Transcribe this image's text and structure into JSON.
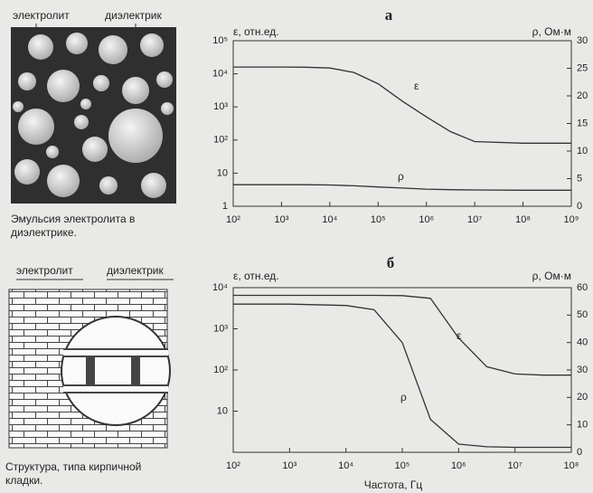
{
  "figure_top": {
    "labels": [
      "электролит",
      "диэлектрик"
    ],
    "caption": [
      "Эмульсия электролита в",
      "диэлектрике."
    ]
  },
  "figure_bottom": {
    "labels": [
      "электролит",
      "диэлектрик"
    ],
    "caption": [
      "Структура, типа кирпичной",
      "кладки."
    ]
  },
  "chart_data": [
    {
      "type": "line",
      "title": "а",
      "ylabel": "ε, отн.ед.",
      "y2label": "ρ, Ом·м",
      "x": [
        100,
        1000,
        3162,
        10000,
        31623,
        100000,
        316228,
        1000000,
        3162278,
        10000000,
        100000000,
        1000000000
      ],
      "xlog": true,
      "ylog": true,
      "xlim": [
        100,
        1000000000
      ],
      "xticks": [
        {
          "value": 100,
          "label": "10²"
        },
        {
          "value": 1000,
          "label": "10³"
        },
        {
          "value": 10000,
          "label": "10⁴"
        },
        {
          "value": 100000,
          "label": "10⁵"
        },
        {
          "value": 1000000,
          "label": "10⁶"
        },
        {
          "value": 10000000,
          "label": "10⁷"
        },
        {
          "value": 100000000,
          "label": "10⁸"
        },
        {
          "value": 1000000000,
          "label": "10⁹"
        }
      ],
      "ylim": [
        1,
        100000
      ],
      "yticks": [
        1,
        10,
        {
          "value": 100,
          "label": "10²"
        },
        {
          "value": 1000,
          "label": "10³"
        },
        {
          "value": 10000,
          "label": "10⁴"
        },
        {
          "value": 100000,
          "label": "10⁵"
        }
      ],
      "y2lim": [
        0,
        30
      ],
      "y2ticks": [
        0,
        5,
        10,
        15,
        20,
        25,
        30
      ],
      "series": [
        {
          "name": "ε",
          "color": "#333333",
          "values": [
            16000,
            16000,
            15800,
            15000,
            11000,
            5000,
            1500,
            500,
            180,
            90,
            80,
            80
          ]
        },
        {
          "name": "ρ",
          "color": "#333333",
          "axis": "y2",
          "values": [
            3.9,
            3.9,
            3.9,
            3.85,
            3.7,
            3.5,
            3.3,
            3.1,
            3.0,
            2.95,
            2.9,
            2.9
          ]
        }
      ]
    },
    {
      "type": "line",
      "title": "б",
      "ylabel": "ε, отн.ед.",
      "y2label": "ρ, Ом·м",
      "xlabel": "Частота, Гц",
      "x": [
        100,
        1000,
        10000,
        31623,
        100000,
        316228,
        1000000,
        3162278,
        10000000,
        31622777,
        100000000
      ],
      "xlog": true,
      "ylog": true,
      "xlim": [
        100,
        100000000
      ],
      "xticks": [
        {
          "value": 100,
          "label": "10²"
        },
        {
          "value": 1000,
          "label": "10³"
        },
        {
          "value": 10000,
          "label": "10⁴"
        },
        {
          "value": 100000,
          "label": "10⁵"
        },
        {
          "value": 1000000,
          "label": "10⁶"
        },
        {
          "value": 10000000,
          "label": "10⁷"
        },
        {
          "value": 100000000,
          "label": "10⁸"
        }
      ],
      "ylim": [
        1,
        10000
      ],
      "yticks": [
        10,
        {
          "value": 100,
          "label": "10²"
        },
        {
          "value": 1000,
          "label": "10³"
        },
        {
          "value": 10000,
          "label": "10⁴"
        }
      ],
      "y2lim": [
        0,
        60
      ],
      "y2ticks": [
        0,
        10,
        20,
        30,
        40,
        50,
        60
      ],
      "series": [
        {
          "name": "ε",
          "color": "#333333",
          "values": [
            6500,
            6500,
            6500,
            6500,
            6400,
            5500,
            600,
            120,
            80,
            75,
            75
          ]
        },
        {
          "name": "ρ",
          "color": "#333333",
          "axis": "y2",
          "values": [
            54,
            54,
            53.5,
            52,
            40,
            12,
            3,
            2,
            1.8,
            1.8,
            1.8
          ]
        }
      ]
    }
  ]
}
